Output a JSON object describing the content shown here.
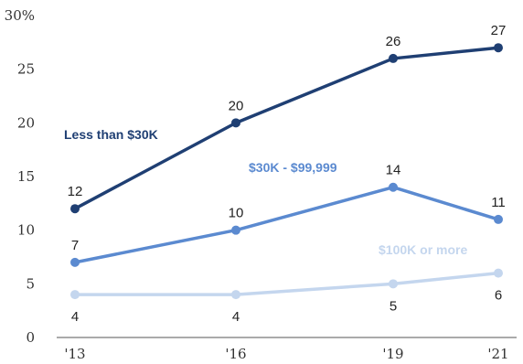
{
  "chart_data": {
    "type": "line",
    "title": "",
    "xlabel": "",
    "ylabel": "",
    "categories": [
      "'13",
      "'16",
      "'19",
      "'21"
    ],
    "x": [
      2013,
      2016,
      2019,
      2021
    ],
    "ylim": [
      0,
      30
    ],
    "yticks": [
      0,
      5,
      10,
      15,
      20,
      25,
      30
    ],
    "ytick_labels": [
      "0",
      "5",
      "10",
      "15",
      "20",
      "25",
      "30%"
    ],
    "grid": false,
    "legend": "inline",
    "series": [
      {
        "name": "Less than $30K",
        "values": [
          12,
          20,
          26,
          27
        ],
        "color": "#1f3f73",
        "labels": [
          "12",
          "20",
          "26",
          "27"
        ],
        "label_pos": "above"
      },
      {
        "name": "$30K - $99,999",
        "values": [
          7,
          10,
          14,
          11
        ],
        "color": "#5b8ad0",
        "labels": [
          "7",
          "10",
          "14",
          "11"
        ],
        "label_pos": "above"
      },
      {
        "name": "$100K or more",
        "values": [
          4,
          4,
          5,
          6
        ],
        "color": "#c4d6ee",
        "labels": [
          "4",
          "4",
          "5",
          "6"
        ],
        "label_pos": "below"
      }
    ]
  }
}
